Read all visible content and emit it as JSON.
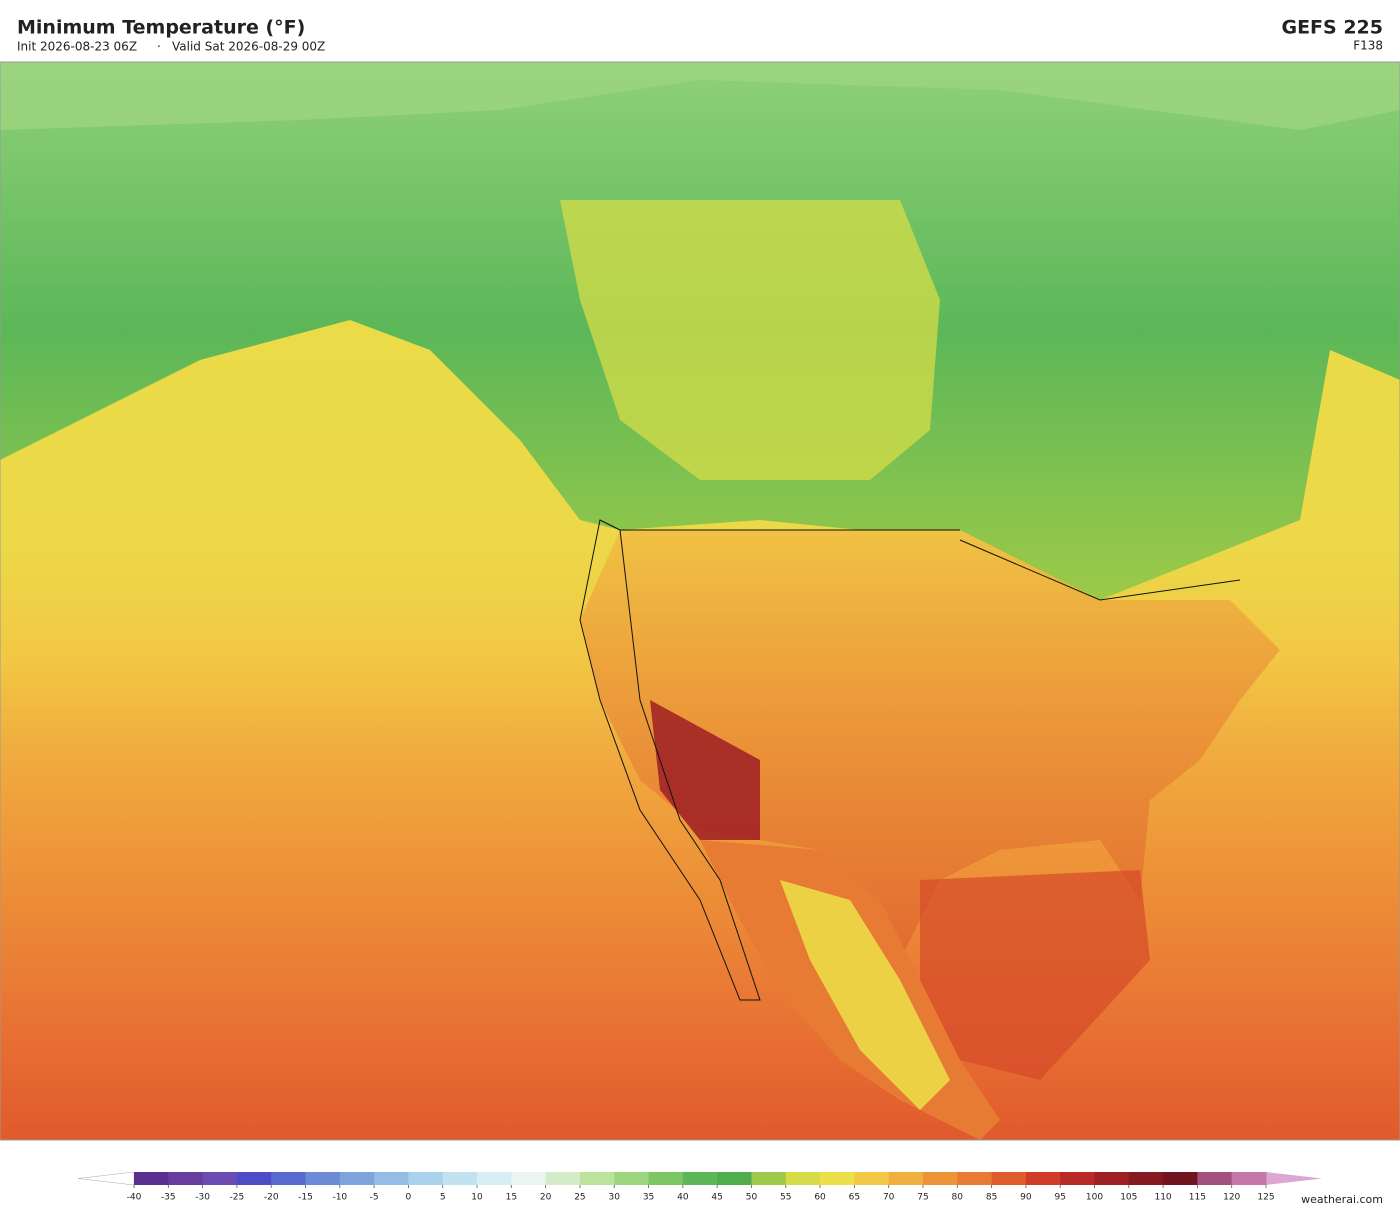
{
  "header": {
    "title": "Minimum Temperature  (°F)",
    "init": "Init 2026-08-23 06Z",
    "separator": "·",
    "valid": "Valid Sat 2026-08-29 00Z",
    "model": "GEFS  225",
    "forecast_hour": "F138"
  },
  "colorbar": {
    "lim": [
      -40,
      125
    ],
    "ticks": [
      -40,
      -35,
      -30,
      -25,
      -20,
      -15,
      -10,
      -5,
      0,
      5,
      10,
      15,
      20,
      25,
      30,
      35,
      40,
      45,
      50,
      55,
      60,
      65,
      70,
      75,
      80,
      85,
      90,
      95,
      100,
      105,
      110,
      115,
      120,
      125
    ],
    "colors": [
      "#5b2f8f",
      "#6a3c9e",
      "#6c4cb2",
      "#4c4cc6",
      "#5a6bd0",
      "#6d8ad6",
      "#7fa3dc",
      "#95bce4",
      "#aad2ec",
      "#c3e2f0",
      "#d9eef4",
      "#e9f5ee",
      "#d3ebc6",
      "#bde29e",
      "#9ed57f",
      "#7cc764",
      "#5cb758",
      "#4fad4b",
      "#9dca48",
      "#d5dc48",
      "#ece048",
      "#f2c844",
      "#f0b040",
      "#ec9538",
      "#e87b34",
      "#e05c2c",
      "#d03c28",
      "#b92a27",
      "#9e1f23",
      "#84191f",
      "#6f1420",
      "#a3507e",
      "#c478aa",
      "#dca7d3"
    ],
    "under_color": "#ffffff",
    "over_color": "#dca7d3"
  },
  "footer": {
    "watermark": "weatherai.com"
  }
}
